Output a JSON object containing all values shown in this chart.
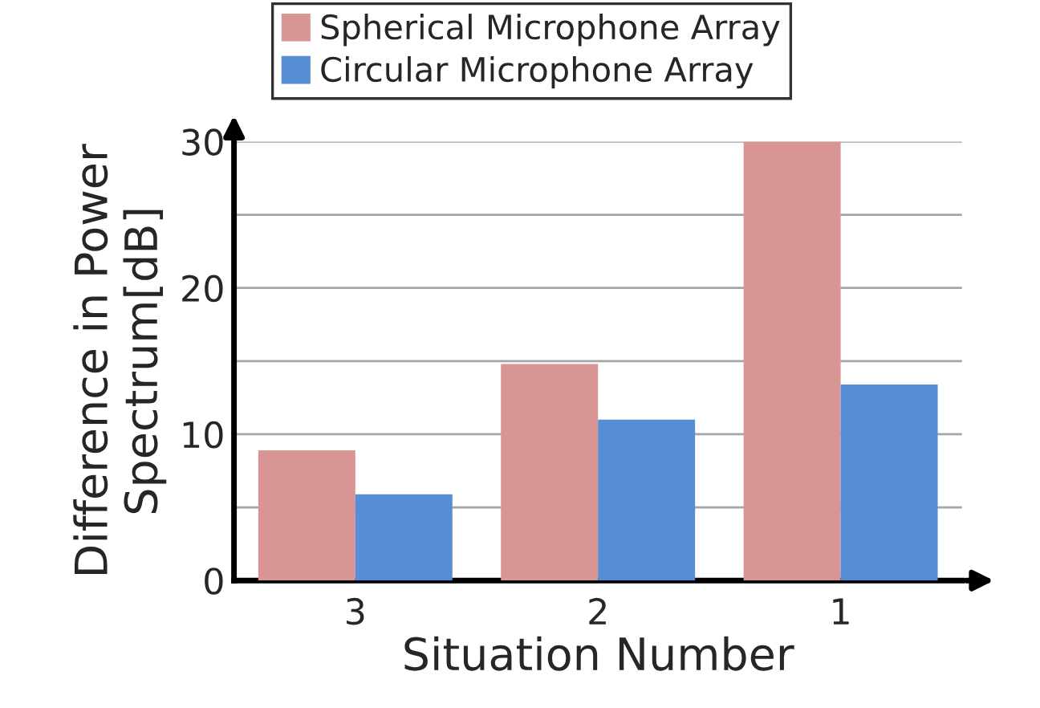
{
  "chart_data": {
    "type": "bar",
    "xlabel": "Situation Number",
    "ylabel": "Difference in Power\nSpectrum[dB]",
    "categories": [
      "3",
      "2",
      "1"
    ],
    "series": [
      {
        "name": "Spherical Microphone Array",
        "color": "#d99594",
        "values": [
          8.9,
          14.8,
          30
        ]
      },
      {
        "name": "Circular Microphone Array",
        "color": "#558ed5",
        "values": [
          5.9,
          11,
          13.4
        ]
      }
    ],
    "ylim": [
      0,
      30
    ],
    "yticks": [
      0,
      {
        "value": 5,
        "label": null
      },
      10,
      {
        "value": 15,
        "label": null
      },
      20,
      {
        "value": 25,
        "label": null
      },
      30
    ],
    "grid": "y",
    "legend": "top"
  }
}
